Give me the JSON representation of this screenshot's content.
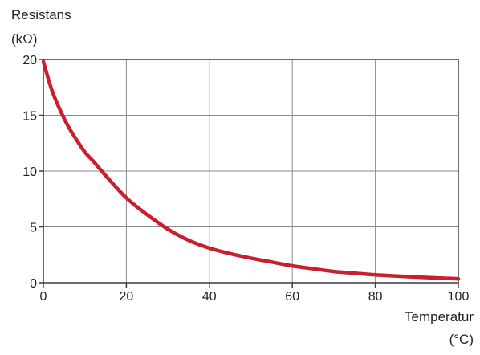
{
  "chart_data": {
    "type": "line",
    "ylabel": "Resistans",
    "ylabel_unit": "(kΩ)",
    "xlabel": "Temperatur",
    "xlabel_unit": "(°C)",
    "xlim": [
      0,
      100
    ],
    "ylim": [
      0,
      20
    ],
    "x_ticks": [
      0,
      20,
      40,
      60,
      80,
      100
    ],
    "y_ticks": [
      0,
      5,
      10,
      15,
      20
    ],
    "grid": true,
    "colors": {
      "line": "#c8202f",
      "grid": "#8a8a8a",
      "axis": "#3a3a3a"
    },
    "series": [
      {
        "x": [
          0,
          2,
          4,
          6,
          8,
          10,
          12,
          15,
          20,
          25,
          30,
          35,
          40,
          45,
          50,
          55,
          60,
          65,
          70,
          75,
          80,
          85,
          90,
          95,
          100
        ],
        "values": [
          19.8,
          17.3,
          15.5,
          14.0,
          12.8,
          11.7,
          10.9,
          9.6,
          7.6,
          6.1,
          4.8,
          3.8,
          3.1,
          2.6,
          2.2,
          1.85,
          1.5,
          1.25,
          1.0,
          0.85,
          0.7,
          0.6,
          0.5,
          0.42,
          0.35
        ]
      }
    ]
  }
}
